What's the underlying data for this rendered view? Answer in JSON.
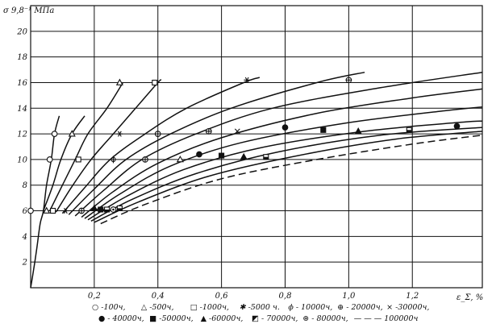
{
  "chart_data": {
    "type": "line",
    "title": "",
    "xlabel": "ε_Σ, %",
    "ylabel": "σ 9,8⁻¹ МПа",
    "xlim": [
      0,
      1.42
    ],
    "ylim": [
      0,
      22
    ],
    "x_ticks": [
      "0,2",
      "0,4",
      "0,6",
      "0,8",
      "1,0",
      "1,2"
    ],
    "x_tick_values": [
      0.2,
      0.4,
      0.6,
      0.8,
      1.0,
      1.2
    ],
    "y_ticks": [
      "2",
      "4",
      "6",
      "8",
      "10",
      "12",
      "14",
      "16",
      "18",
      "20"
    ],
    "y_tick_values": [
      2,
      4,
      6,
      8,
      10,
      12,
      14,
      16,
      18,
      20
    ],
    "grid": true,
    "legend_position": "bottom",
    "legend_lines": [
      [
        "○ -100ч,",
        "△ -500ч,",
        "□ -1000ч,",
        "✱ -5000 ч.",
        "ϕ - 10000ч,",
        "⊕ - 20000ч,",
        "× -30000ч,"
      ],
      [
        "● - 40000ч,",
        "■ -50000ч,",
        "▲ -60000ч,",
        "◩ - 70000ч,",
        "⊛ - 80000ч,",
        "— — — 100000ч"
      ]
    ],
    "series": [
      {
        "name": "100ч",
        "marker": "circle-open",
        "points": [
          [
            0.0,
            0.0
          ],
          [
            0.01,
            1.5
          ],
          [
            0.02,
            3.2
          ],
          [
            0.03,
            5.0
          ],
          [
            0.04,
            6.0
          ],
          [
            0.05,
            8.0
          ],
          [
            0.065,
            10.0
          ],
          [
            0.075,
            12.0
          ],
          [
            0.09,
            13.4
          ]
        ]
      },
      {
        "name": "500ч",
        "marker": "triangle-open",
        "points": [
          [
            0.04,
            6.0
          ],
          [
            0.07,
            8.0
          ],
          [
            0.095,
            10.0
          ],
          [
            0.13,
            12.0
          ],
          [
            0.17,
            13.4
          ]
        ]
      },
      {
        "name": "1000ч",
        "marker": "square-open",
        "points": [
          [
            0.06,
            6.0
          ],
          [
            0.1,
            8.0
          ],
          [
            0.14,
            10.0
          ],
          [
            0.18,
            12.0
          ],
          [
            0.24,
            14.0
          ],
          [
            0.29,
            16.0
          ]
        ]
      },
      {
        "name": "5000ч",
        "marker": "asterisk",
        "points": [
          [
            0.08,
            5.9
          ],
          [
            0.13,
            7.9
          ],
          [
            0.19,
            10.0
          ],
          [
            0.26,
            12.0
          ],
          [
            0.33,
            14.0
          ],
          [
            0.4,
            16.0
          ],
          [
            0.41,
            16.2
          ]
        ]
      },
      {
        "name": "10000ч",
        "marker": "phi",
        "points": [
          [
            0.1,
            5.8
          ],
          [
            0.17,
            7.8
          ],
          [
            0.25,
            10.0
          ],
          [
            0.36,
            12.0
          ],
          [
            0.49,
            14.0
          ],
          [
            0.67,
            16.0
          ],
          [
            0.72,
            16.4
          ]
        ]
      },
      {
        "name": "20000ч",
        "marker": "circle-cross",
        "points": [
          [
            0.12,
            5.7
          ],
          [
            0.2,
            7.7
          ],
          [
            0.3,
            10.0
          ],
          [
            0.44,
            12.0
          ],
          [
            0.63,
            14.0
          ],
          [
            0.9,
            16.0
          ],
          [
            1.05,
            16.8
          ]
        ]
      },
      {
        "name": "30000ч",
        "marker": "x",
        "points": [
          [
            0.14,
            5.6
          ],
          [
            0.23,
            7.6
          ],
          [
            0.35,
            10.0
          ],
          [
            0.52,
            12.0
          ],
          [
            0.76,
            14.0
          ],
          [
            1.1,
            15.6
          ],
          [
            1.42,
            16.8
          ]
        ]
      },
      {
        "name": "40000ч",
        "marker": "circle-filled",
        "points": [
          [
            0.16,
            5.5
          ],
          [
            0.26,
            7.5
          ],
          [
            0.4,
            9.7
          ],
          [
            0.6,
            11.7
          ],
          [
            0.9,
            13.6
          ],
          [
            1.2,
            14.8
          ],
          [
            1.42,
            15.5
          ]
        ]
      },
      {
        "name": "50000ч",
        "marker": "square-filled",
        "points": [
          [
            0.17,
            5.4
          ],
          [
            0.28,
            7.3
          ],
          [
            0.44,
            9.5
          ],
          [
            0.66,
            11.3
          ],
          [
            0.98,
            12.8
          ],
          [
            1.3,
            13.8
          ],
          [
            1.42,
            14.1
          ]
        ]
      },
      {
        "name": "60000ч",
        "marker": "triangle-filled",
        "points": [
          [
            0.18,
            5.3
          ],
          [
            0.3,
            7.1
          ],
          [
            0.48,
            9.2
          ],
          [
            0.72,
            10.9
          ],
          [
            1.05,
            12.2
          ],
          [
            1.35,
            12.9
          ],
          [
            1.42,
            13.0
          ]
        ]
      },
      {
        "name": "70000ч",
        "marker": "square-half",
        "points": [
          [
            0.19,
            5.2
          ],
          [
            0.32,
            6.9
          ],
          [
            0.52,
            8.9
          ],
          [
            0.78,
            10.6
          ],
          [
            1.1,
            11.9
          ],
          [
            1.42,
            12.5
          ]
        ]
      },
      {
        "name": "80000ч",
        "marker": "circle-dot",
        "points": [
          [
            0.2,
            5.1
          ],
          [
            0.34,
            6.7
          ],
          [
            0.56,
            8.7
          ],
          [
            0.84,
            10.3
          ],
          [
            1.15,
            11.6
          ],
          [
            1.42,
            12.2
          ]
        ]
      },
      {
        "name": "100000ч",
        "marker": "dashed",
        "points": [
          [
            0.22,
            5.0
          ],
          [
            0.36,
            6.5
          ],
          [
            0.6,
            8.5
          ],
          [
            0.9,
            10.0
          ],
          [
            1.2,
            11.2
          ],
          [
            1.42,
            11.9
          ]
        ]
      }
    ],
    "markers": [
      {
        "type": "circle-open",
        "x": 0.0,
        "y": 6.0
      },
      {
        "type": "circle-open",
        "x": 0.06,
        "y": 10.0
      },
      {
        "type": "circle-open",
        "x": 0.075,
        "y": 12.0
      },
      {
        "type": "triangle-open",
        "x": 0.05,
        "y": 6.0
      },
      {
        "type": "triangle-open",
        "x": 0.13,
        "y": 12.0
      },
      {
        "type": "triangle-open",
        "x": 0.28,
        "y": 16.0
      },
      {
        "type": "square-open",
        "x": 0.07,
        "y": 6.0
      },
      {
        "type": "square-open",
        "x": 0.15,
        "y": 10.0
      },
      {
        "type": "square-open",
        "x": 0.39,
        "y": 16.0
      },
      {
        "type": "asterisk",
        "x": 0.11,
        "y": 6.0
      },
      {
        "type": "asterisk",
        "x": 0.28,
        "y": 12.0
      },
      {
        "type": "asterisk",
        "x": 0.68,
        "y": 16.2
      },
      {
        "type": "circle-cross",
        "x": 0.16,
        "y": 6.0
      },
      {
        "type": "circle-cross",
        "x": 0.4,
        "y": 12.0
      },
      {
        "type": "circle-cross",
        "x": 1.0,
        "y": 16.2
      },
      {
        "type": "circle-cross",
        "x": 0.36,
        "y": 10.0
      },
      {
        "type": "phi",
        "x": 0.26,
        "y": 10.0
      },
      {
        "type": "x",
        "x": 0.65,
        "y": 12.2
      },
      {
        "type": "circle-filled",
        "x": 0.8,
        "y": 12.5
      },
      {
        "type": "square-filled",
        "x": 0.92,
        "y": 12.3
      },
      {
        "type": "triangle-filled",
        "x": 1.03,
        "y": 12.2
      },
      {
        "type": "square-half",
        "x": 1.19,
        "y": 12.3
      },
      {
        "type": "circle-filled",
        "x": 1.34,
        "y": 12.6
      },
      {
        "type": "circle-filled",
        "x": 0.53,
        "y": 10.4
      },
      {
        "type": "square-filled",
        "x": 0.6,
        "y": 10.3
      },
      {
        "type": "triangle-filled",
        "x": 0.67,
        "y": 10.2
      },
      {
        "type": "square-half",
        "x": 0.74,
        "y": 10.2
      },
      {
        "type": "circle-cross",
        "x": 0.56,
        "y": 12.2
      },
      {
        "type": "triangle-open",
        "x": 0.47,
        "y": 10.0
      },
      {
        "type": "triangle-filled",
        "x": 0.2,
        "y": 6.2
      },
      {
        "type": "square-filled",
        "x": 0.22,
        "y": 6.1
      },
      {
        "type": "square-half",
        "x": 0.24,
        "y": 6.1
      },
      {
        "type": "circle-dot",
        "x": 0.26,
        "y": 6.1
      },
      {
        "type": "square-half",
        "x": 0.28,
        "y": 6.2
      }
    ]
  }
}
